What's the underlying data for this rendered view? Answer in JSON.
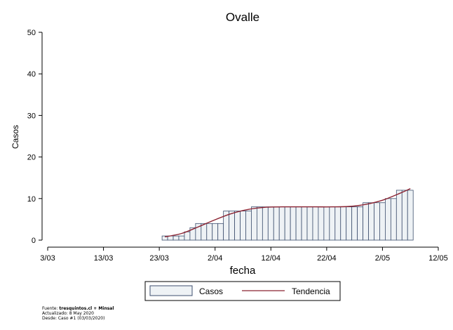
{
  "chart_data": {
    "type": "bar",
    "title": "Ovalle",
    "xlabel": "fecha",
    "ylabel": "Casos",
    "ylim": [
      0,
      50
    ],
    "yticks": [
      0,
      10,
      20,
      30,
      40,
      50
    ],
    "xlim": [
      "2020-03-03",
      "2020-05-12"
    ],
    "xticks": [
      {
        "date": "2020-03-03",
        "label": "3/03"
      },
      {
        "date": "2020-03-13",
        "label": "13/03"
      },
      {
        "date": "2020-03-23",
        "label": "23/03"
      },
      {
        "date": "2020-04-02",
        "label": "2/04"
      },
      {
        "date": "2020-04-12",
        "label": "12/04"
      },
      {
        "date": "2020-04-22",
        "label": "22/04"
      },
      {
        "date": "2020-05-02",
        "label": "2/05"
      },
      {
        "date": "2020-05-12",
        "label": "12/05"
      }
    ],
    "series": [
      {
        "name": "Casos",
        "type": "bar",
        "color": "#eef2f5",
        "edge_color": "#3d4f6e",
        "x": [
          "2020-03-24",
          "2020-03-25",
          "2020-03-26",
          "2020-03-27",
          "2020-03-28",
          "2020-03-29",
          "2020-03-30",
          "2020-03-31",
          "2020-04-01",
          "2020-04-02",
          "2020-04-03",
          "2020-04-04",
          "2020-04-05",
          "2020-04-06",
          "2020-04-07",
          "2020-04-08",
          "2020-04-09",
          "2020-04-10",
          "2020-04-11",
          "2020-04-12",
          "2020-04-13",
          "2020-04-14",
          "2020-04-15",
          "2020-04-16",
          "2020-04-17",
          "2020-04-18",
          "2020-04-19",
          "2020-04-20",
          "2020-04-21",
          "2020-04-22",
          "2020-04-23",
          "2020-04-24",
          "2020-04-25",
          "2020-04-26",
          "2020-04-27",
          "2020-04-28",
          "2020-04-29",
          "2020-04-30",
          "2020-05-01",
          "2020-05-02",
          "2020-05-03",
          "2020-05-04",
          "2020-05-05",
          "2020-05-06",
          "2020-05-07"
        ],
        "values": [
          1,
          1,
          1,
          1,
          2,
          3,
          4,
          4,
          4,
          4,
          4,
          7,
          7,
          7,
          7,
          7,
          8,
          8,
          8,
          8,
          8,
          8,
          8,
          8,
          8,
          8,
          8,
          8,
          8,
          8,
          8,
          8,
          8,
          8,
          8,
          8,
          9,
          9,
          9,
          9,
          10,
          10,
          12,
          12,
          12
        ]
      },
      {
        "name": "Tendencia",
        "type": "line",
        "color": "#8b2332",
        "x": [
          "2020-03-24",
          "2020-03-27",
          "2020-03-30",
          "2020-04-02",
          "2020-04-05",
          "2020-04-08",
          "2020-04-11",
          "2020-04-14",
          "2020-04-17",
          "2020-04-20",
          "2020-04-23",
          "2020-04-26",
          "2020-04-29",
          "2020-05-02",
          "2020-05-05",
          "2020-05-07"
        ],
        "values": [
          0.8,
          1.6,
          3.2,
          4.9,
          6.4,
          7.4,
          7.9,
          8.0,
          8.0,
          8.0,
          8.0,
          8.1,
          8.6,
          9.6,
          11.2,
          12.4
        ]
      }
    ],
    "legend": {
      "position": "bottom-center",
      "entries": [
        "Casos",
        "Tendencia"
      ]
    },
    "grid": false
  },
  "footer": {
    "source_label": "Fuente: ",
    "source_bold": "tresquintos.cl + Minsal",
    "updated": "Actualizado: 8 May 2020",
    "since": "Desde: Caso #1  (03/03/2020)"
  }
}
